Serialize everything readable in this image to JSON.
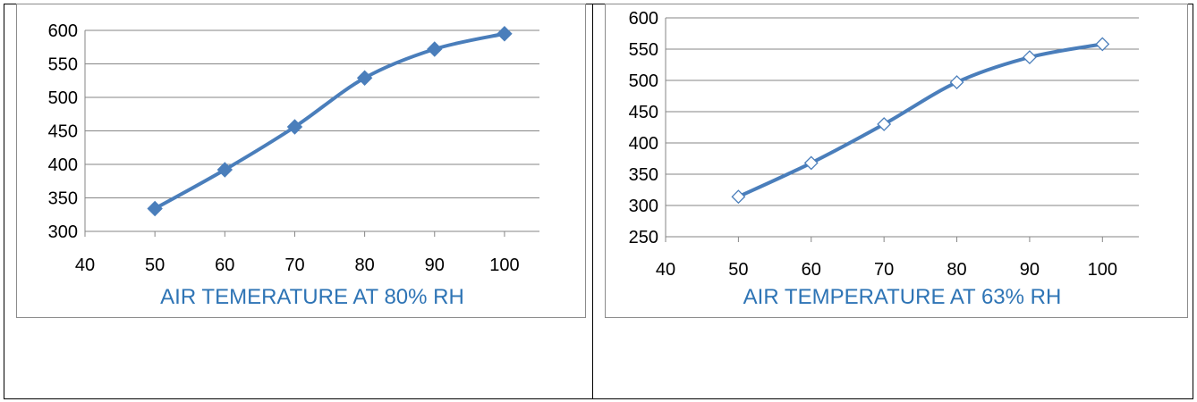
{
  "colors": {
    "series": "#4a7ebb",
    "axis_title": "#2e74b5",
    "grid": "#868686"
  },
  "chart_data": [
    {
      "type": "line",
      "title": "",
      "xlabel": "AIR TEMERATURE AT 80% RH",
      "ylabel": "",
      "x": [
        50,
        60,
        70,
        80,
        90,
        100
      ],
      "series": [
        {
          "values": [
            334,
            392,
            456,
            529,
            572,
            595
          ],
          "marker": "diamond-filled",
          "smooth": true
        }
      ],
      "xlim": [
        40,
        105
      ],
      "ylim": [
        300,
        600
      ],
      "xticks": [
        "40",
        "50",
        "60",
        "70",
        "80",
        "90",
        "100"
      ],
      "yticks": [
        "300",
        "350",
        "400",
        "450",
        "500",
        "550",
        "600"
      ],
      "grid": "horizontal",
      "legend": "none"
    },
    {
      "type": "line",
      "title": "",
      "xlabel": "AIR TEMPERATURE AT 63% RH",
      "ylabel": "",
      "x": [
        50,
        60,
        70,
        80,
        90,
        100
      ],
      "series": [
        {
          "values": [
            314,
            368,
            430,
            497,
            537,
            558
          ],
          "marker": "diamond-open",
          "smooth": true
        }
      ],
      "xlim": [
        40,
        105
      ],
      "ylim": [
        250,
        600
      ],
      "xticks": [
        "40",
        "50",
        "60",
        "70",
        "80",
        "90",
        "100"
      ],
      "yticks": [
        "250",
        "300",
        "350",
        "400",
        "450",
        "500",
        "550",
        "600"
      ],
      "grid": "horizontal",
      "legend": "none"
    }
  ]
}
